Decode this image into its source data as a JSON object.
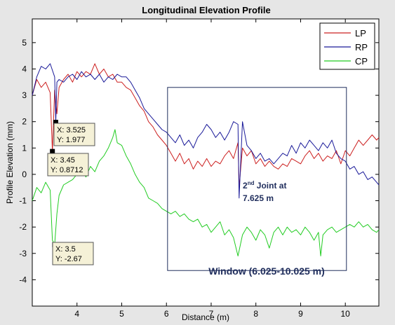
{
  "chart_data": {
    "type": "line",
    "title": "Longitudinal Elevation Profile",
    "xlabel": "Distance (m)",
    "ylabel": "Profile Elevation (mm)",
    "xlim": [
      3.0,
      10.75
    ],
    "ylim": [
      -5,
      5.9
    ],
    "xticks": [
      4,
      5,
      6,
      7,
      8,
      9,
      10
    ],
    "yticks": [
      -4,
      -3,
      -2,
      -1,
      0,
      1,
      2,
      3,
      4,
      5
    ],
    "grid": false,
    "legend_position": "top-right",
    "series": [
      {
        "name": "LP",
        "color": "#cc2020",
        "points": [
          [
            3.0,
            3.0
          ],
          [
            3.1,
            3.6
          ],
          [
            3.2,
            3.3
          ],
          [
            3.3,
            3.5
          ],
          [
            3.4,
            3.1
          ],
          [
            3.45,
            0.87
          ],
          [
            3.5,
            3.2
          ],
          [
            3.55,
            2.3
          ],
          [
            3.6,
            3.3
          ],
          [
            3.7,
            3.6
          ],
          [
            3.8,
            3.8
          ],
          [
            3.9,
            3.5
          ],
          [
            4.0,
            3.9
          ],
          [
            4.1,
            3.7
          ],
          [
            4.2,
            3.9
          ],
          [
            4.3,
            3.8
          ],
          [
            4.4,
            4.2
          ],
          [
            4.5,
            3.8
          ],
          [
            4.6,
            4.0
          ],
          [
            4.7,
            3.7
          ],
          [
            4.8,
            3.8
          ],
          [
            4.9,
            3.5
          ],
          [
            5.0,
            3.5
          ],
          [
            5.1,
            3.3
          ],
          [
            5.2,
            3.2
          ],
          [
            5.3,
            2.9
          ],
          [
            5.4,
            2.6
          ],
          [
            5.5,
            2.4
          ],
          [
            5.6,
            2.0
          ],
          [
            5.7,
            1.8
          ],
          [
            5.8,
            1.5
          ],
          [
            5.9,
            1.3
          ],
          [
            6.0,
            1.1
          ],
          [
            6.1,
            0.8
          ],
          [
            6.2,
            0.5
          ],
          [
            6.3,
            0.8
          ],
          [
            6.4,
            0.4
          ],
          [
            6.5,
            0.6
          ],
          [
            6.6,
            0.2
          ],
          [
            6.7,
            0.5
          ],
          [
            6.8,
            0.3
          ],
          [
            6.9,
            0.6
          ],
          [
            7.0,
            0.3
          ],
          [
            7.1,
            0.5
          ],
          [
            7.2,
            0.4
          ],
          [
            7.3,
            0.7
          ],
          [
            7.4,
            0.9
          ],
          [
            7.5,
            0.6
          ],
          [
            7.6,
            1.2
          ],
          [
            7.625,
            -0.5
          ],
          [
            7.7,
            1.0
          ],
          [
            7.8,
            0.7
          ],
          [
            7.9,
            0.9
          ],
          [
            8.0,
            0.4
          ],
          [
            8.1,
            0.6
          ],
          [
            8.2,
            0.3
          ],
          [
            8.3,
            0.5
          ],
          [
            8.4,
            0.3
          ],
          [
            8.5,
            0.2
          ],
          [
            8.6,
            0.4
          ],
          [
            8.7,
            0.3
          ],
          [
            8.8,
            0.6
          ],
          [
            8.9,
            0.5
          ],
          [
            9.0,
            0.4
          ],
          [
            9.1,
            0.7
          ],
          [
            9.2,
            0.9
          ],
          [
            9.3,
            0.6
          ],
          [
            9.4,
            0.8
          ],
          [
            9.5,
            0.5
          ],
          [
            9.6,
            0.7
          ],
          [
            9.7,
            0.6
          ],
          [
            9.8,
            0.9
          ],
          [
            9.9,
            0.4
          ],
          [
            10.0,
            0.9
          ],
          [
            10.1,
            0.7
          ],
          [
            10.2,
            1.0
          ],
          [
            10.3,
            1.3
          ],
          [
            10.4,
            1.1
          ],
          [
            10.5,
            1.3
          ],
          [
            10.6,
            1.5
          ],
          [
            10.7,
            1.3
          ],
          [
            10.75,
            1.4
          ]
        ]
      },
      {
        "name": "RP",
        "color": "#1a1a99",
        "points": [
          [
            3.0,
            3.0
          ],
          [
            3.1,
            3.7
          ],
          [
            3.2,
            4.1
          ],
          [
            3.3,
            4.0
          ],
          [
            3.4,
            4.2
          ],
          [
            3.5,
            3.7
          ],
          [
            3.525,
            1.98
          ],
          [
            3.55,
            3.5
          ],
          [
            3.6,
            3.6
          ],
          [
            3.7,
            3.5
          ],
          [
            3.8,
            3.7
          ],
          [
            3.9,
            3.8
          ],
          [
            4.0,
            3.6
          ],
          [
            4.1,
            3.9
          ],
          [
            4.2,
            3.7
          ],
          [
            4.3,
            3.8
          ],
          [
            4.4,
            3.6
          ],
          [
            4.5,
            3.8
          ],
          [
            4.6,
            3.5
          ],
          [
            4.7,
            3.7
          ],
          [
            4.8,
            3.6
          ],
          [
            4.9,
            3.8
          ],
          [
            5.0,
            3.7
          ],
          [
            5.1,
            3.7
          ],
          [
            5.2,
            3.5
          ],
          [
            5.3,
            3.2
          ],
          [
            5.4,
            2.9
          ],
          [
            5.5,
            2.5
          ],
          [
            5.6,
            2.3
          ],
          [
            5.7,
            2.1
          ],
          [
            5.8,
            1.9
          ],
          [
            5.9,
            1.7
          ],
          [
            6.0,
            1.6
          ],
          [
            6.1,
            1.4
          ],
          [
            6.2,
            1.2
          ],
          [
            6.3,
            1.5
          ],
          [
            6.4,
            1.1
          ],
          [
            6.5,
            1.3
          ],
          [
            6.6,
            1.0
          ],
          [
            6.7,
            1.4
          ],
          [
            6.8,
            1.6
          ],
          [
            6.9,
            1.9
          ],
          [
            7.0,
            1.7
          ],
          [
            7.1,
            1.4
          ],
          [
            7.2,
            1.6
          ],
          [
            7.3,
            1.3
          ],
          [
            7.4,
            1.6
          ],
          [
            7.5,
            2.0
          ],
          [
            7.6,
            1.9
          ],
          [
            7.625,
            -0.9
          ],
          [
            7.7,
            2.0
          ],
          [
            7.8,
            1.1
          ],
          [
            7.9,
            0.9
          ],
          [
            8.0,
            0.6
          ],
          [
            8.1,
            0.8
          ],
          [
            8.2,
            0.5
          ],
          [
            8.3,
            0.6
          ],
          [
            8.4,
            0.4
          ],
          [
            8.5,
            0.6
          ],
          [
            8.6,
            0.8
          ],
          [
            8.7,
            0.7
          ],
          [
            8.8,
            1.1
          ],
          [
            8.9,
            0.8
          ],
          [
            9.0,
            1.2
          ],
          [
            9.1,
            1.0
          ],
          [
            9.2,
            1.3
          ],
          [
            9.3,
            1.1
          ],
          [
            9.4,
            0.9
          ],
          [
            9.5,
            1.2
          ],
          [
            9.6,
            1.0
          ],
          [
            9.7,
            1.3
          ],
          [
            9.8,
            0.8
          ],
          [
            9.9,
            0.6
          ],
          [
            10.0,
            0.5
          ],
          [
            10.1,
            0.2
          ],
          [
            10.2,
            0.3
          ],
          [
            10.3,
            0.0
          ],
          [
            10.4,
            0.1
          ],
          [
            10.5,
            -0.2
          ],
          [
            10.6,
            -0.1
          ],
          [
            10.7,
            -0.3
          ],
          [
            10.75,
            -0.4
          ]
        ]
      },
      {
        "name": "CP",
        "color": "#22cc22",
        "points": [
          [
            3.0,
            -1.0
          ],
          [
            3.1,
            -0.5
          ],
          [
            3.2,
            -0.7
          ],
          [
            3.3,
            -0.3
          ],
          [
            3.4,
            -0.6
          ],
          [
            3.45,
            -2.5
          ],
          [
            3.5,
            -2.67
          ],
          [
            3.55,
            -1.5
          ],
          [
            3.6,
            -0.8
          ],
          [
            3.7,
            -0.4
          ],
          [
            3.8,
            -0.3
          ],
          [
            3.9,
            -0.2
          ],
          [
            4.0,
            0.0
          ],
          [
            4.1,
            0.2
          ],
          [
            4.2,
            -0.1
          ],
          [
            4.3,
            0.3
          ],
          [
            4.4,
            0.1
          ],
          [
            4.5,
            0.5
          ],
          [
            4.6,
            0.7
          ],
          [
            4.7,
            1.0
          ],
          [
            4.8,
            1.4
          ],
          [
            4.85,
            1.7
          ],
          [
            4.9,
            1.2
          ],
          [
            5.0,
            1.1
          ],
          [
            5.1,
            0.7
          ],
          [
            5.2,
            0.4
          ],
          [
            5.3,
            0.0
          ],
          [
            5.4,
            -0.3
          ],
          [
            5.5,
            -0.5
          ],
          [
            5.6,
            -0.9
          ],
          [
            5.7,
            -1.0
          ],
          [
            5.8,
            -1.1
          ],
          [
            5.9,
            -1.3
          ],
          [
            6.0,
            -1.4
          ],
          [
            6.1,
            -1.5
          ],
          [
            6.2,
            -1.4
          ],
          [
            6.3,
            -1.6
          ],
          [
            6.4,
            -1.5
          ],
          [
            6.5,
            -1.7
          ],
          [
            6.6,
            -1.8
          ],
          [
            6.7,
            -1.7
          ],
          [
            6.8,
            -2.0
          ],
          [
            6.9,
            -1.9
          ],
          [
            7.0,
            -2.2
          ],
          [
            7.1,
            -2.0
          ],
          [
            7.2,
            -1.8
          ],
          [
            7.3,
            -2.3
          ],
          [
            7.4,
            -2.1
          ],
          [
            7.5,
            -2.4
          ],
          [
            7.6,
            -3.1
          ],
          [
            7.7,
            -2.3
          ],
          [
            7.8,
            -2.0
          ],
          [
            7.9,
            -2.2
          ],
          [
            8.0,
            -2.5
          ],
          [
            8.1,
            -2.1
          ],
          [
            8.2,
            -2.3
          ],
          [
            8.3,
            -2.8
          ],
          [
            8.4,
            -2.2
          ],
          [
            8.5,
            -2.0
          ],
          [
            8.6,
            -2.3
          ],
          [
            8.7,
            -2.0
          ],
          [
            8.8,
            -2.2
          ],
          [
            8.9,
            -2.1
          ],
          [
            9.0,
            -2.3
          ],
          [
            9.1,
            -2.0
          ],
          [
            9.2,
            -2.2
          ],
          [
            9.3,
            -2.5
          ],
          [
            9.4,
            -2.2
          ],
          [
            9.45,
            -3.1
          ],
          [
            9.5,
            -2.3
          ],
          [
            9.6,
            -2.1
          ],
          [
            9.7,
            -2.0
          ],
          [
            9.8,
            -2.2
          ],
          [
            9.9,
            -2.1
          ],
          [
            10.0,
            -2.0
          ],
          [
            10.1,
            -1.9
          ],
          [
            10.2,
            -2.0
          ],
          [
            10.3,
            -1.8
          ],
          [
            10.4,
            -2.0
          ],
          [
            10.5,
            -1.9
          ],
          [
            10.6,
            -2.1
          ],
          [
            10.7,
            -2.2
          ],
          [
            10.75,
            -2.1
          ]
        ]
      }
    ],
    "datatips": [
      {
        "x_label": "X: 3.525",
        "y_label": "Y: 1.977",
        "x": 3.525,
        "y": 1.977
      },
      {
        "x_label": "X: 3.45",
        "y_label": "Y: 0.8712",
        "x": 3.45,
        "y": 0.8712
      },
      {
        "x_label": "X: 3.5",
        "y_label": "Y: -2.67",
        "x": 3.5,
        "y": -2.67
      }
    ],
    "window": {
      "x0": 6.025,
      "x1": 10.025,
      "y_top": 3.3,
      "y_bottom": -3.65
    },
    "annotations": {
      "joint_prefix": "2",
      "joint_sup": "nd",
      "joint_rest": " Joint at",
      "joint_line2": "7.625 m",
      "window_label": "Window (6.025-10.025 m)"
    }
  }
}
